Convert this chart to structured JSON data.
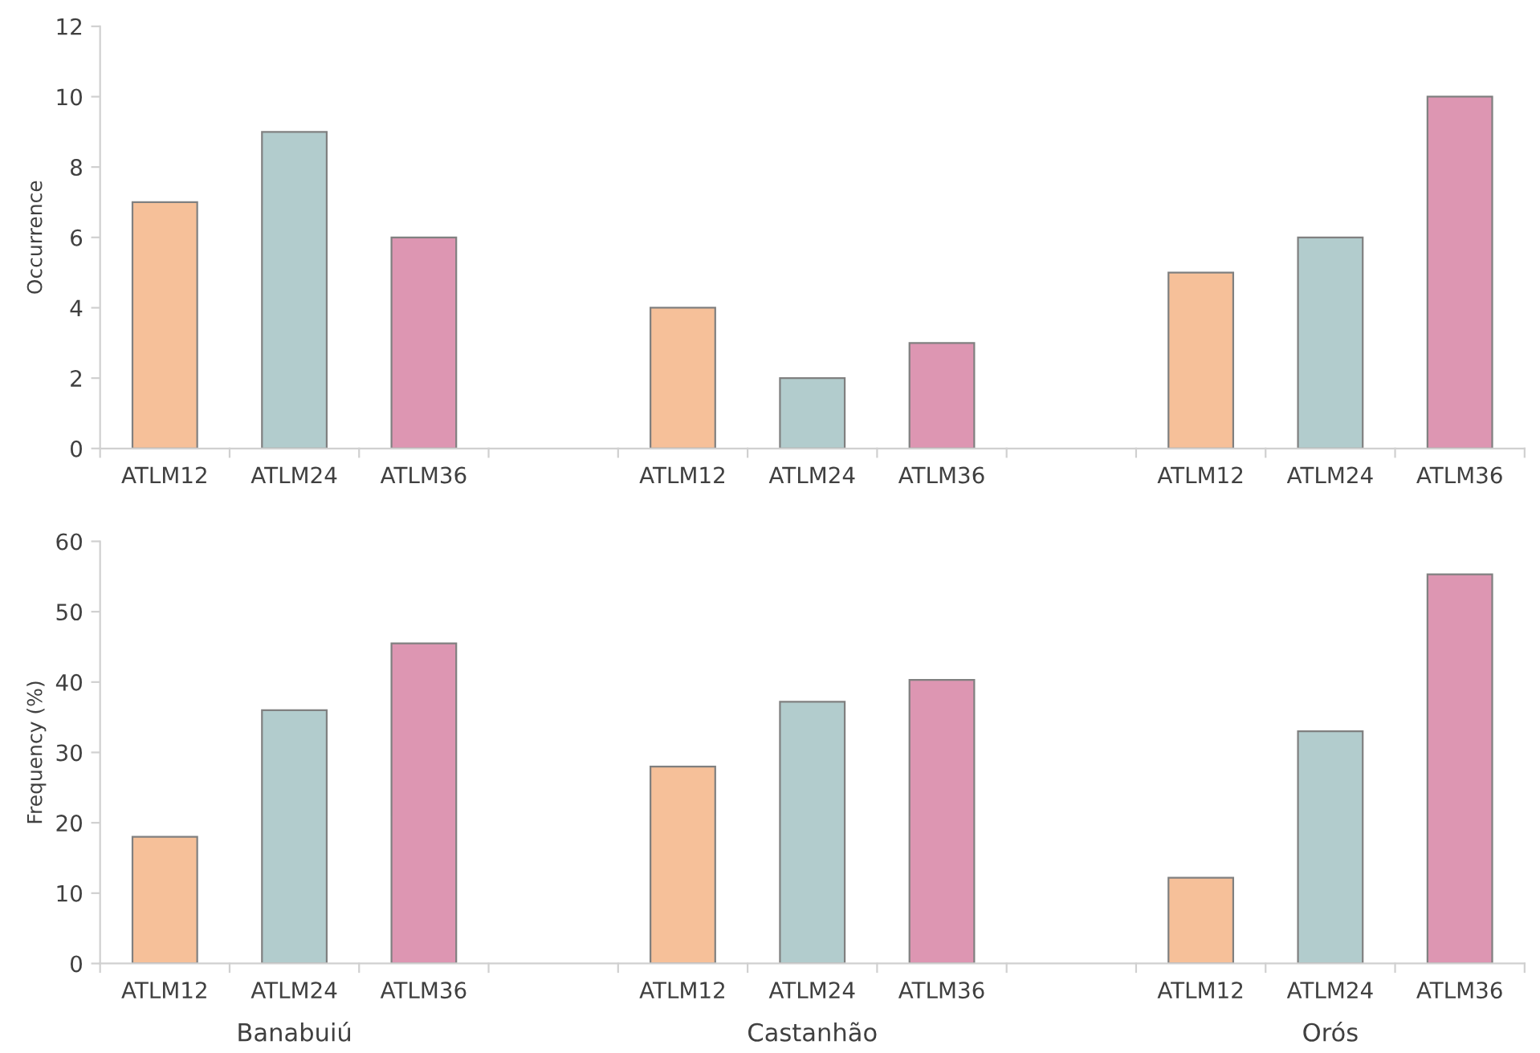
{
  "chart_data": [
    {
      "type": "bar",
      "ylabel": "Occurrence",
      "categories": [
        "ATLM12",
        "ATLM24",
        "ATLM36",
        null,
        "ATLM12",
        "ATLM24",
        "ATLM36",
        null,
        "ATLM12",
        "ATLM24",
        "ATLM36"
      ],
      "values": [
        7,
        9,
        6,
        null,
        4,
        2,
        3,
        null,
        5,
        6,
        10
      ],
      "colors": [
        "#f6c099",
        "#b2cccd",
        "#dd96b2",
        null,
        "#f6c099",
        "#b2cccd",
        "#dd96b2",
        null,
        "#f6c099",
        "#b2cccd",
        "#dd96b2"
      ],
      "ylim": [
        0,
        12
      ],
      "yticks": [
        0,
        2,
        4,
        6,
        8,
        10,
        12
      ],
      "grid": false,
      "legend": false
    },
    {
      "type": "bar",
      "ylabel": "Frequency (%)",
      "categories": [
        "ATLM12",
        "ATLM24",
        "ATLM36",
        null,
        "ATLM12",
        "ATLM24",
        "ATLM36",
        null,
        "ATLM12",
        "ATLM24",
        "ATLM36"
      ],
      "values": [
        18,
        36,
        45.5,
        null,
        28,
        37.2,
        40.3,
        null,
        12.2,
        33,
        55.3
      ],
      "colors": [
        "#f6c099",
        "#b2cccd",
        "#dd96b2",
        null,
        "#f6c099",
        "#b2cccd",
        "#dd96b2",
        null,
        "#f6c099",
        "#b2cccd",
        "#dd96b2"
      ],
      "ylim": [
        0,
        60
      ],
      "yticks": [
        0,
        10,
        20,
        30,
        40,
        50,
        60
      ],
      "grid": false,
      "legend": false,
      "annotations": [
        "Banabuiú",
        "Castanhão",
        "Orós"
      ]
    }
  ]
}
